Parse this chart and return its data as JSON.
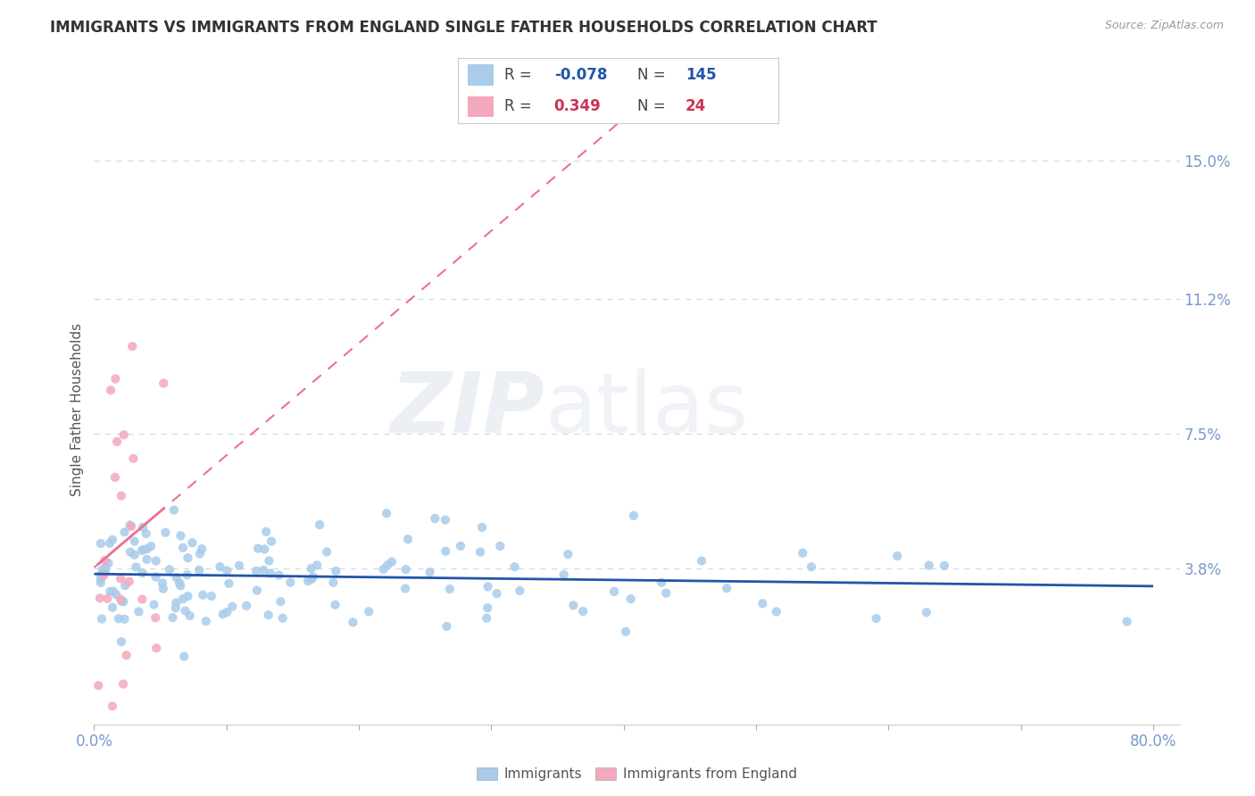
{
  "title": "IMMIGRANTS VS IMMIGRANTS FROM ENGLAND SINGLE FATHER HOUSEHOLDS CORRELATION CHART",
  "source": "Source: ZipAtlas.com",
  "ylabel": "Single Father Households",
  "xlim": [
    0.0,
    0.82
  ],
  "ylim": [
    -0.005,
    0.168
  ],
  "yticks": [
    0.038,
    0.075,
    0.112,
    0.15
  ],
  "ytick_labels": [
    "3.8%",
    "7.5%",
    "11.2%",
    "15.0%"
  ],
  "xticks": [
    0.0,
    0.1,
    0.2,
    0.3,
    0.4,
    0.5,
    0.6,
    0.7,
    0.8
  ],
  "blue_scatter_color": "#A8CCEA",
  "pink_scatter_color": "#F4A8BC",
  "blue_line_color": "#2255AA",
  "pink_line_color": "#EE7090",
  "axis_color": "#7799CC",
  "grid_color": "#CCDDE8",
  "legend_R1": "-0.078",
  "legend_N1": "145",
  "legend_R2": "0.349",
  "legend_N2": "24",
  "legend_label1": "Immigrants",
  "legend_label2": "Immigrants from England",
  "blue_R": -0.078,
  "blue_N": 145,
  "pink_R": 0.349,
  "pink_N": 24
}
